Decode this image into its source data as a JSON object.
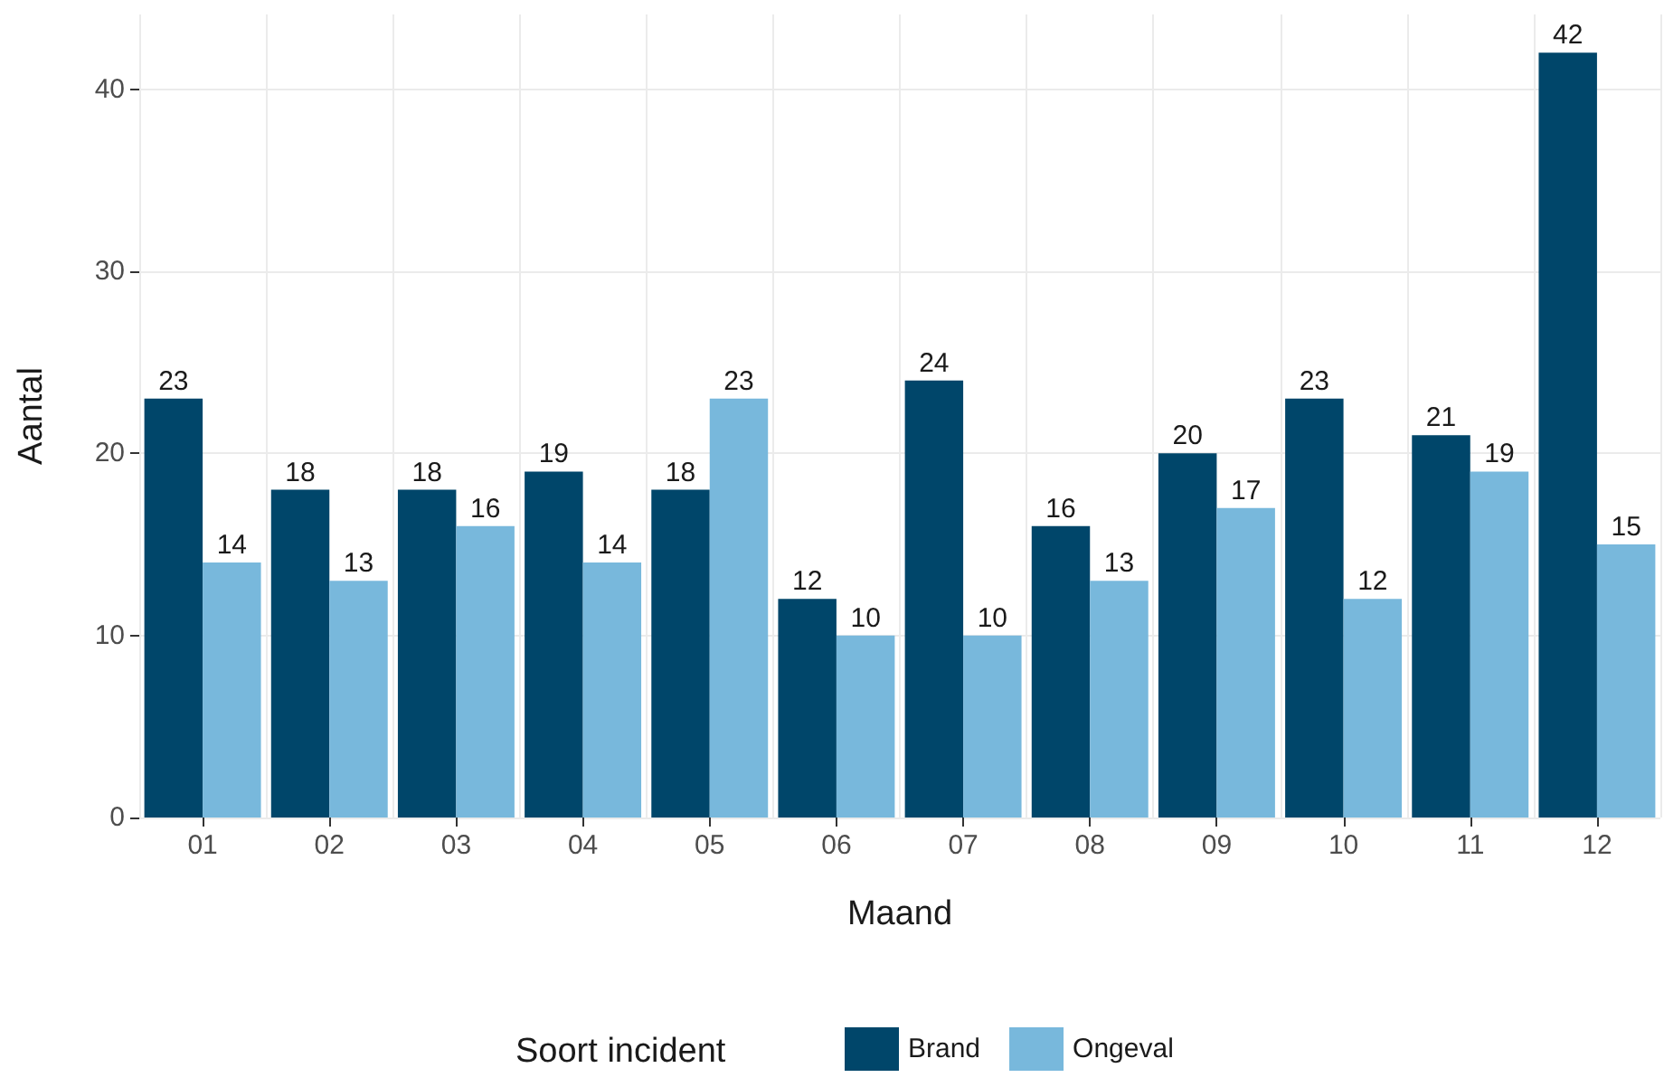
{
  "chart_data": {
    "type": "bar",
    "xlabel": "Maand",
    "ylabel": "Aantal",
    "legend_title": "Soort incident",
    "categories": [
      "01",
      "02",
      "03",
      "04",
      "05",
      "06",
      "07",
      "08",
      "09",
      "10",
      "11",
      "12"
    ],
    "series": [
      {
        "name": "Brand",
        "color": "#00466a",
        "values": [
          23,
          18,
          18,
          19,
          18,
          12,
          24,
          16,
          20,
          23,
          21,
          42
        ]
      },
      {
        "name": "Ongeval",
        "color": "#78b8dc",
        "values": [
          14,
          13,
          16,
          14,
          23,
          10,
          10,
          13,
          17,
          12,
          19,
          15
        ]
      }
    ],
    "ylim": [
      0,
      44.1
    ],
    "yticks": [
      0,
      10,
      20,
      30,
      40
    ],
    "grid": true,
    "legend": "bottom",
    "data_labels": true
  }
}
